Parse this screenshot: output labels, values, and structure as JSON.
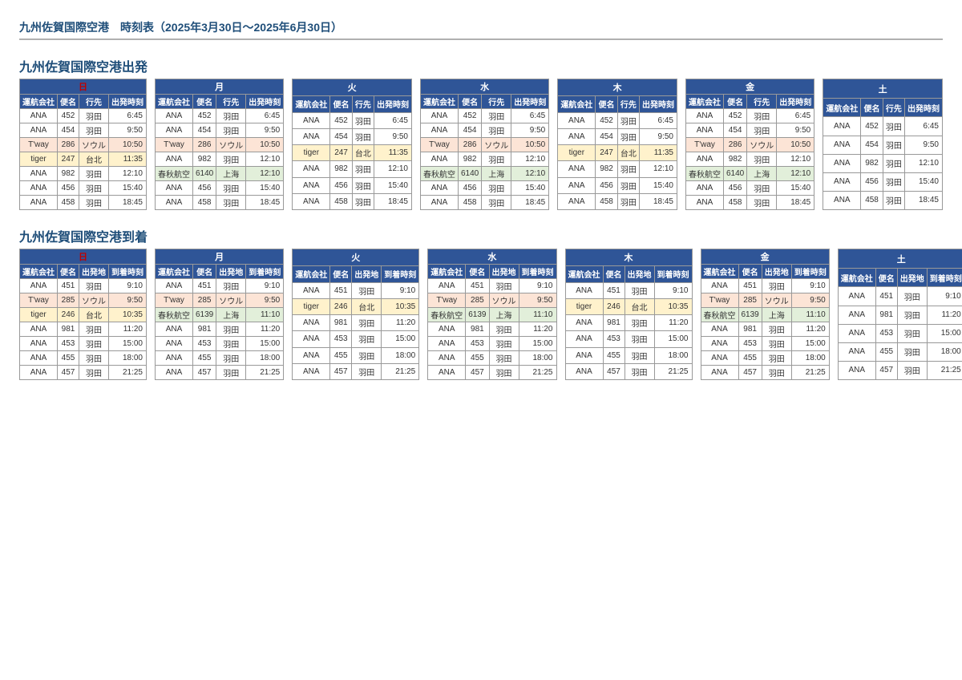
{
  "title": "九州佐賀国際空港　時刻表（2025年3月30日～2025年6月30日）",
  "sections": [
    {
      "title": "九州佐賀国際空港出発",
      "cols": [
        "運航会社",
        "便名",
        "行先",
        "出発時刻"
      ],
      "days": [
        {
          "label": "日",
          "sunday": true,
          "rows": [
            {
              "a": "ANA",
              "f": "452",
              "d": "羽田",
              "t": "6:45"
            },
            {
              "a": "ANA",
              "f": "454",
              "d": "羽田",
              "t": "9:50"
            },
            {
              "a": "T'way",
              "f": "286",
              "d": "ソウル",
              "t": "10:50",
              "hl": "tway"
            },
            {
              "a": "tiger",
              "f": "247",
              "d": "台北",
              "t": "11:35",
              "hl": "tiger"
            },
            {
              "a": "ANA",
              "f": "982",
              "d": "羽田",
              "t": "12:10"
            },
            {
              "a": "ANA",
              "f": "456",
              "d": "羽田",
              "t": "15:40"
            },
            {
              "a": "ANA",
              "f": "458",
              "d": "羽田",
              "t": "18:45"
            }
          ]
        },
        {
          "label": "月",
          "rows": [
            {
              "a": "ANA",
              "f": "452",
              "d": "羽田",
              "t": "6:45"
            },
            {
              "a": "ANA",
              "f": "454",
              "d": "羽田",
              "t": "9:50"
            },
            {
              "a": "T'way",
              "f": "286",
              "d": "ソウル",
              "t": "10:50",
              "hl": "tway"
            },
            {
              "a": "ANA",
              "f": "982",
              "d": "羽田",
              "t": "12:10"
            },
            {
              "a": "春秋航空",
              "f": "6140",
              "d": "上海",
              "t": "12:10",
              "hl": "spring"
            },
            {
              "a": "ANA",
              "f": "456",
              "d": "羽田",
              "t": "15:40"
            },
            {
              "a": "ANA",
              "f": "458",
              "d": "羽田",
              "t": "18:45"
            }
          ]
        },
        {
          "label": "火",
          "rows": [
            {
              "a": "ANA",
              "f": "452",
              "d": "羽田",
              "t": "6:45"
            },
            {
              "a": "ANA",
              "f": "454",
              "d": "羽田",
              "t": "9:50"
            },
            {
              "a": "tiger",
              "f": "247",
              "d": "台北",
              "t": "11:35",
              "hl": "tiger"
            },
            {
              "a": "ANA",
              "f": "982",
              "d": "羽田",
              "t": "12:10"
            },
            {
              "a": "ANA",
              "f": "456",
              "d": "羽田",
              "t": "15:40"
            },
            {
              "a": "ANA",
              "f": "458",
              "d": "羽田",
              "t": "18:45"
            }
          ]
        },
        {
          "label": "水",
          "rows": [
            {
              "a": "ANA",
              "f": "452",
              "d": "羽田",
              "t": "6:45"
            },
            {
              "a": "ANA",
              "f": "454",
              "d": "羽田",
              "t": "9:50"
            },
            {
              "a": "T'way",
              "f": "286",
              "d": "ソウル",
              "t": "10:50",
              "hl": "tway"
            },
            {
              "a": "ANA",
              "f": "982",
              "d": "羽田",
              "t": "12:10"
            },
            {
              "a": "春秋航空",
              "f": "6140",
              "d": "上海",
              "t": "12:10",
              "hl": "spring"
            },
            {
              "a": "ANA",
              "f": "456",
              "d": "羽田",
              "t": "15:40"
            },
            {
              "a": "ANA",
              "f": "458",
              "d": "羽田",
              "t": "18:45"
            }
          ]
        },
        {
          "label": "木",
          "rows": [
            {
              "a": "ANA",
              "f": "452",
              "d": "羽田",
              "t": "6:45"
            },
            {
              "a": "ANA",
              "f": "454",
              "d": "羽田",
              "t": "9:50"
            },
            {
              "a": "tiger",
              "f": "247",
              "d": "台北",
              "t": "11:35",
              "hl": "tiger"
            },
            {
              "a": "ANA",
              "f": "982",
              "d": "羽田",
              "t": "12:10"
            },
            {
              "a": "ANA",
              "f": "456",
              "d": "羽田",
              "t": "15:40"
            },
            {
              "a": "ANA",
              "f": "458",
              "d": "羽田",
              "t": "18:45"
            }
          ]
        },
        {
          "label": "金",
          "rows": [
            {
              "a": "ANA",
              "f": "452",
              "d": "羽田",
              "t": "6:45"
            },
            {
              "a": "ANA",
              "f": "454",
              "d": "羽田",
              "t": "9:50"
            },
            {
              "a": "T'way",
              "f": "286",
              "d": "ソウル",
              "t": "10:50",
              "hl": "tway"
            },
            {
              "a": "ANA",
              "f": "982",
              "d": "羽田",
              "t": "12:10"
            },
            {
              "a": "春秋航空",
              "f": "6140",
              "d": "上海",
              "t": "12:10",
              "hl": "spring"
            },
            {
              "a": "ANA",
              "f": "456",
              "d": "羽田",
              "t": "15:40"
            },
            {
              "a": "ANA",
              "f": "458",
              "d": "羽田",
              "t": "18:45"
            }
          ]
        },
        {
          "label": "土",
          "rows": [
            {
              "a": "ANA",
              "f": "452",
              "d": "羽田",
              "t": "6:45"
            },
            {
              "a": "ANA",
              "f": "454",
              "d": "羽田",
              "t": "9:50"
            },
            {
              "a": "ANA",
              "f": "982",
              "d": "羽田",
              "t": "12:10"
            },
            {
              "a": "ANA",
              "f": "456",
              "d": "羽田",
              "t": "15:40"
            },
            {
              "a": "ANA",
              "f": "458",
              "d": "羽田",
              "t": "18:45"
            }
          ]
        }
      ]
    },
    {
      "title": "九州佐賀国際空港到着",
      "cols": [
        "運航会社",
        "便名",
        "出発地",
        "到着時刻"
      ],
      "days": [
        {
          "label": "日",
          "sunday": true,
          "rows": [
            {
              "a": "ANA",
              "f": "451",
              "d": "羽田",
              "t": "9:10"
            },
            {
              "a": "T'way",
              "f": "285",
              "d": "ソウル",
              "t": "9:50",
              "hl": "tway"
            },
            {
              "a": "tiger",
              "f": "246",
              "d": "台北",
              "t": "10:35",
              "hl": "tiger"
            },
            {
              "a": "ANA",
              "f": "981",
              "d": "羽田",
              "t": "11:20"
            },
            {
              "a": "ANA",
              "f": "453",
              "d": "羽田",
              "t": "15:00"
            },
            {
              "a": "ANA",
              "f": "455",
              "d": "羽田",
              "t": "18:00"
            },
            {
              "a": "ANA",
              "f": "457",
              "d": "羽田",
              "t": "21:25"
            }
          ]
        },
        {
          "label": "月",
          "rows": [
            {
              "a": "ANA",
              "f": "451",
              "d": "羽田",
              "t": "9:10"
            },
            {
              "a": "T'way",
              "f": "285",
              "d": "ソウル",
              "t": "9:50",
              "hl": "tway"
            },
            {
              "a": "春秋航空",
              "f": "6139",
              "d": "上海",
              "t": "11:10",
              "hl": "spring"
            },
            {
              "a": "ANA",
              "f": "981",
              "d": "羽田",
              "t": "11:20"
            },
            {
              "a": "ANA",
              "f": "453",
              "d": "羽田",
              "t": "15:00"
            },
            {
              "a": "ANA",
              "f": "455",
              "d": "羽田",
              "t": "18:00"
            },
            {
              "a": "ANA",
              "f": "457",
              "d": "羽田",
              "t": "21:25"
            }
          ]
        },
        {
          "label": "火",
          "rows": [
            {
              "a": "ANA",
              "f": "451",
              "d": "羽田",
              "t": "9:10"
            },
            {
              "a": "tiger",
              "f": "246",
              "d": "台北",
              "t": "10:35",
              "hl": "tiger"
            },
            {
              "a": "ANA",
              "f": "981",
              "d": "羽田",
              "t": "11:20"
            },
            {
              "a": "ANA",
              "f": "453",
              "d": "羽田",
              "t": "15:00"
            },
            {
              "a": "ANA",
              "f": "455",
              "d": "羽田",
              "t": "18:00"
            },
            {
              "a": "ANA",
              "f": "457",
              "d": "羽田",
              "t": "21:25"
            }
          ]
        },
        {
          "label": "水",
          "rows": [
            {
              "a": "ANA",
              "f": "451",
              "d": "羽田",
              "t": "9:10"
            },
            {
              "a": "T'way",
              "f": "285",
              "d": "ソウル",
              "t": "9:50",
              "hl": "tway"
            },
            {
              "a": "春秋航空",
              "f": "6139",
              "d": "上海",
              "t": "11:10",
              "hl": "spring"
            },
            {
              "a": "ANA",
              "f": "981",
              "d": "羽田",
              "t": "11:20"
            },
            {
              "a": "ANA",
              "f": "453",
              "d": "羽田",
              "t": "15:00"
            },
            {
              "a": "ANA",
              "f": "455",
              "d": "羽田",
              "t": "18:00"
            },
            {
              "a": "ANA",
              "f": "457",
              "d": "羽田",
              "t": "21:25"
            }
          ]
        },
        {
          "label": "木",
          "rows": [
            {
              "a": "ANA",
              "f": "451",
              "d": "羽田",
              "t": "9:10"
            },
            {
              "a": "tiger",
              "f": "246",
              "d": "台北",
              "t": "10:35",
              "hl": "tiger"
            },
            {
              "a": "ANA",
              "f": "981",
              "d": "羽田",
              "t": "11:20"
            },
            {
              "a": "ANA",
              "f": "453",
              "d": "羽田",
              "t": "15:00"
            },
            {
              "a": "ANA",
              "f": "455",
              "d": "羽田",
              "t": "18:00"
            },
            {
              "a": "ANA",
              "f": "457",
              "d": "羽田",
              "t": "21:25"
            }
          ]
        },
        {
          "label": "金",
          "rows": [
            {
              "a": "ANA",
              "f": "451",
              "d": "羽田",
              "t": "9:10"
            },
            {
              "a": "T'way",
              "f": "285",
              "d": "ソウル",
              "t": "9:50",
              "hl": "tway"
            },
            {
              "a": "春秋航空",
              "f": "6139",
              "d": "上海",
              "t": "11:10",
              "hl": "spring"
            },
            {
              "a": "ANA",
              "f": "981",
              "d": "羽田",
              "t": "11:20"
            },
            {
              "a": "ANA",
              "f": "453",
              "d": "羽田",
              "t": "15:00"
            },
            {
              "a": "ANA",
              "f": "455",
              "d": "羽田",
              "t": "18:00"
            },
            {
              "a": "ANA",
              "f": "457",
              "d": "羽田",
              "t": "21:25"
            }
          ]
        },
        {
          "label": "土",
          "rows": [
            {
              "a": "ANA",
              "f": "451",
              "d": "羽田",
              "t": "9:10"
            },
            {
              "a": "ANA",
              "f": "981",
              "d": "羽田",
              "t": "11:20"
            },
            {
              "a": "ANA",
              "f": "453",
              "d": "羽田",
              "t": "15:00"
            },
            {
              "a": "ANA",
              "f": "455",
              "d": "羽田",
              "t": "18:00"
            },
            {
              "a": "ANA",
              "f": "457",
              "d": "羽田",
              "t": "21:25"
            }
          ]
        }
      ]
    }
  ]
}
